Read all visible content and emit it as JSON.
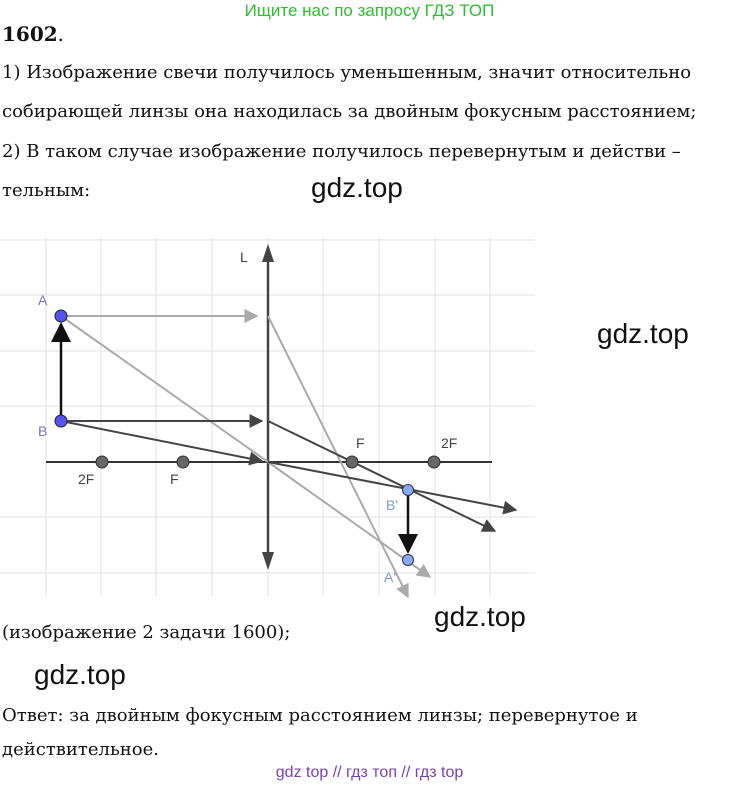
{
  "banner": "Ищите нас по запросу ГДЗ ТОП",
  "problem_number": "1602",
  "problem_punct": ".",
  "lines": [
    "1) Изображение свечи получилось уменьшенным, значит относительно",
    "собирающей линзы она находилась за двойным фокусным расстоянием;",
    "2) В таком случае изображение получилось перевернутым и действи –",
    "тельным:"
  ],
  "watermark": "gdz.top",
  "diagram_labels": {
    "lens": "L",
    "A": "A",
    "B": "B",
    "A_prime": "A'",
    "B_prime": "B'",
    "F_left": "F",
    "F2_left": "2F",
    "F_right": "F",
    "F2_right": "2F"
  },
  "caption": "(изображение 2 задачи 1600);",
  "answer": "Ответ:  за двойным фокусным расстоянием линзы;  перевернутое и",
  "answer_cont": "действительное.",
  "footer": "gdz top  //  гдз топ  //  гдз top",
  "colors": {
    "banner": "#2fbd2f",
    "footer": "#7a3fb0",
    "point_object": "#5555ee",
    "point_image": "#88aaff",
    "point_focus": "#666666"
  }
}
